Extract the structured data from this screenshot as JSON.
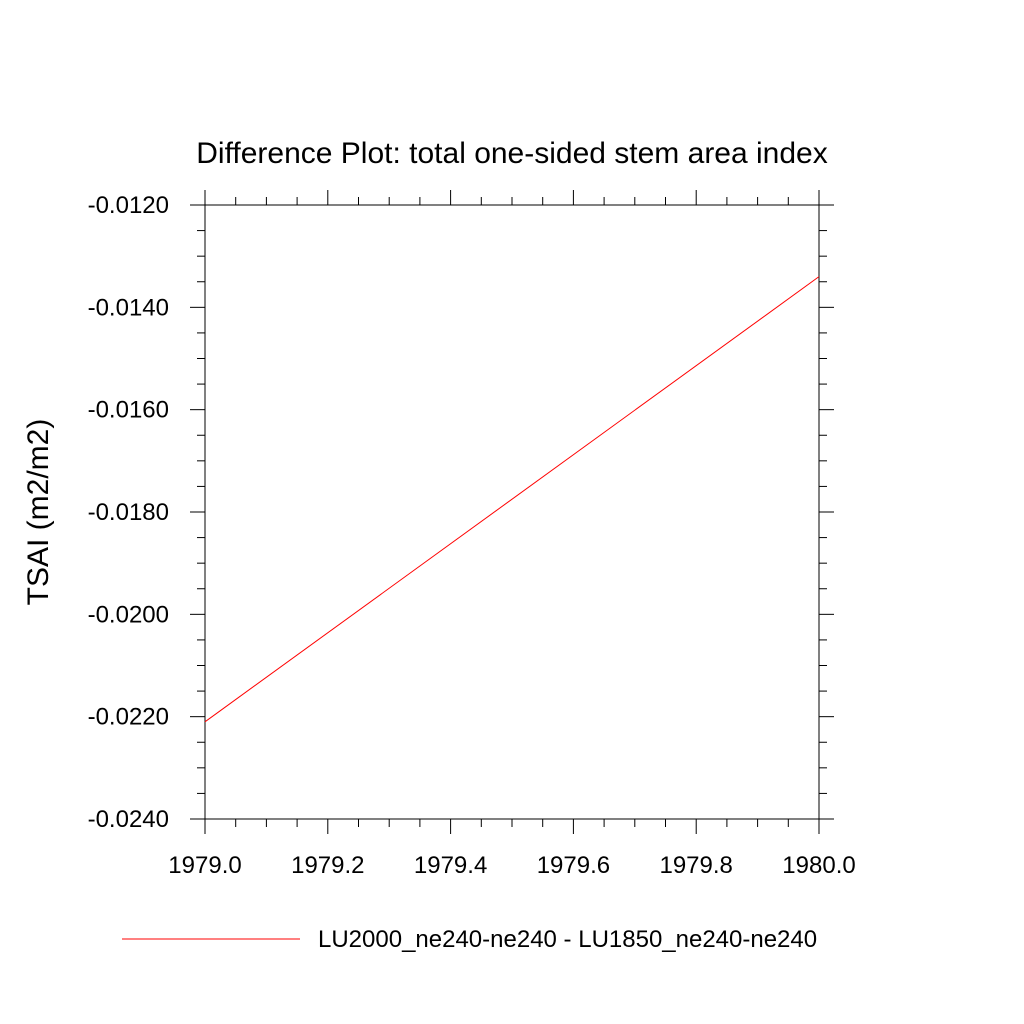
{
  "chart_data": {
    "type": "line",
    "title": "Difference Plot: total one-sided stem area index",
    "xlabel": "",
    "ylabel": "TSAI  (m2/m2)",
    "xlim": [
      1979.0,
      1980.0
    ],
    "ylim": [
      -0.024,
      -0.012
    ],
    "x_ticks": [
      "1979.0",
      "1979.2",
      "1979.4",
      "1979.6",
      "1979.8",
      "1980.0"
    ],
    "y_ticks": [
      "-0.0120",
      "-0.0140",
      "-0.0160",
      "-0.0180",
      "-0.0200",
      "-0.0220",
      "-0.0240"
    ],
    "grid": false,
    "legend_position": "bottom",
    "series": [
      {
        "name": "LU2000_ne240-ne240 - LU1850_ne240-ne240",
        "color": "#ff0000",
        "x": [
          1979.0,
          1980.0
        ],
        "y": [
          -0.0221,
          -0.0134
        ]
      }
    ]
  }
}
